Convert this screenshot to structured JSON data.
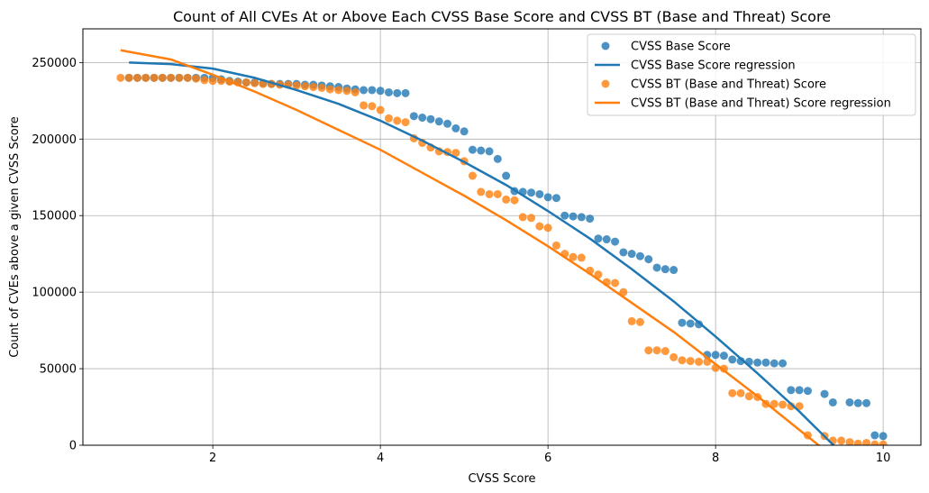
{
  "chart_data": {
    "type": "scatter",
    "title": "Count of All CVEs At or Above Each CVSS Base Score and CVSS BT (Base and Threat) Score",
    "xlabel": "CVSS Score",
    "ylabel": "Count of CVEs above a given CVSS Score",
    "xlim": [
      0.45,
      10.45
    ],
    "ylim": [
      0,
      272000
    ],
    "xticks": [
      2,
      4,
      6,
      8,
      10
    ],
    "yticks": [
      0,
      50000,
      100000,
      150000,
      200000,
      250000
    ],
    "grid": true,
    "legend_position": "top-right",
    "series": [
      {
        "name": "CVSS Base Score",
        "kind": "scatter",
        "color": "#1f77b4",
        "points": [
          [
            1.0,
            240000
          ],
          [
            1.1,
            240000
          ],
          [
            1.2,
            240000
          ],
          [
            1.3,
            240000
          ],
          [
            1.4,
            240000
          ],
          [
            1.5,
            240000
          ],
          [
            1.6,
            240000
          ],
          [
            1.7,
            240000
          ],
          [
            1.8,
            240000
          ],
          [
            1.9,
            240000
          ],
          [
            2.0,
            240000
          ],
          [
            2.1,
            239000
          ],
          [
            2.2,
            238000
          ],
          [
            2.3,
            237500
          ],
          [
            2.4,
            237000
          ],
          [
            2.5,
            237000
          ],
          [
            2.6,
            236500
          ],
          [
            2.7,
            236000
          ],
          [
            2.8,
            236000
          ],
          [
            2.9,
            236000
          ],
          [
            3.0,
            236000
          ],
          [
            3.1,
            235500
          ],
          [
            3.2,
            235500
          ],
          [
            3.3,
            235000
          ],
          [
            3.4,
            234500
          ],
          [
            3.5,
            234000
          ],
          [
            3.6,
            233000
          ],
          [
            3.7,
            232500
          ],
          [
            3.8,
            232000
          ],
          [
            3.9,
            232000
          ],
          [
            4.0,
            231500
          ],
          [
            4.1,
            230500
          ],
          [
            4.2,
            230000
          ],
          [
            4.3,
            230000
          ],
          [
            4.4,
            215000
          ],
          [
            4.5,
            214000
          ],
          [
            4.6,
            213000
          ],
          [
            4.7,
            211500
          ],
          [
            4.8,
            210000
          ],
          [
            4.9,
            207000
          ],
          [
            5.0,
            205000
          ],
          [
            5.1,
            193000
          ],
          [
            5.2,
            192500
          ],
          [
            5.3,
            192000
          ],
          [
            5.4,
            187000
          ],
          [
            5.5,
            176000
          ],
          [
            5.6,
            166000
          ],
          [
            5.7,
            165500
          ],
          [
            5.8,
            165000
          ],
          [
            5.9,
            164000
          ],
          [
            6.0,
            162000
          ],
          [
            6.1,
            161500
          ],
          [
            6.2,
            150000
          ],
          [
            6.3,
            149500
          ],
          [
            6.4,
            149000
          ],
          [
            6.5,
            148000
          ],
          [
            6.6,
            135000
          ],
          [
            6.7,
            134500
          ],
          [
            6.8,
            133000
          ],
          [
            6.9,
            126000
          ],
          [
            7.0,
            125000
          ],
          [
            7.1,
            123500
          ],
          [
            7.2,
            121500
          ],
          [
            7.3,
            116000
          ],
          [
            7.4,
            115000
          ],
          [
            7.5,
            114500
          ],
          [
            7.6,
            80000
          ],
          [
            7.7,
            79500
          ],
          [
            7.8,
            79000
          ],
          [
            7.9,
            59000
          ],
          [
            8.0,
            59000
          ],
          [
            8.1,
            58500
          ],
          [
            8.2,
            56000
          ],
          [
            8.3,
            55000
          ],
          [
            8.4,
            54500
          ],
          [
            8.5,
            54000
          ],
          [
            8.6,
            54000
          ],
          [
            8.7,
            53500
          ],
          [
            8.8,
            53500
          ],
          [
            8.9,
            36000
          ],
          [
            9.0,
            36000
          ],
          [
            9.1,
            35500
          ],
          [
            9.3,
            33500
          ],
          [
            9.4,
            28000
          ],
          [
            9.6,
            28000
          ],
          [
            9.7,
            27500
          ],
          [
            9.8,
            27500
          ],
          [
            9.9,
            6500
          ],
          [
            10.0,
            6000
          ]
        ]
      },
      {
        "name": "CVSS Base Score regression",
        "kind": "line",
        "color": "#1f77b4",
        "x": [
          1.0,
          1.5,
          2.0,
          2.5,
          3.0,
          3.5,
          4.0,
          4.5,
          5.0,
          5.5,
          6.0,
          6.5,
          7.0,
          7.5,
          8.0,
          8.5,
          9.0,
          9.5,
          9.8
        ],
        "values": [
          250000,
          249000,
          246000,
          240000,
          232000,
          223000,
          212000,
          199000,
          185000,
          170000,
          153000,
          135000,
          115000,
          94000,
          71000,
          47000,
          22000,
          -5000,
          -20000
        ]
      },
      {
        "name": "CVSS BT (Base and Threat) Score",
        "kind": "scatter",
        "color": "#ff7f0e",
        "points": [
          [
            0.9,
            240000
          ],
          [
            1.0,
            240000
          ],
          [
            1.1,
            240000
          ],
          [
            1.2,
            240000
          ],
          [
            1.3,
            240000
          ],
          [
            1.4,
            240000
          ],
          [
            1.5,
            240000
          ],
          [
            1.6,
            240000
          ],
          [
            1.7,
            240000
          ],
          [
            1.8,
            239500
          ],
          [
            1.9,
            238500
          ],
          [
            2.0,
            238000
          ],
          [
            2.1,
            238000
          ],
          [
            2.2,
            237500
          ],
          [
            2.3,
            237000
          ],
          [
            2.4,
            237000
          ],
          [
            2.5,
            236500
          ],
          [
            2.6,
            236000
          ],
          [
            2.7,
            236000
          ],
          [
            2.8,
            235500
          ],
          [
            2.9,
            235500
          ],
          [
            3.0,
            235000
          ],
          [
            3.1,
            234500
          ],
          [
            3.2,
            234000
          ],
          [
            3.3,
            233500
          ],
          [
            3.4,
            232500
          ],
          [
            3.5,
            232000
          ],
          [
            3.6,
            231500
          ],
          [
            3.7,
            230500
          ],
          [
            3.8,
            222000
          ],
          [
            3.9,
            221500
          ],
          [
            4.0,
            219000
          ],
          [
            4.1,
            213500
          ],
          [
            4.2,
            212000
          ],
          [
            4.3,
            211000
          ],
          [
            4.4,
            200500
          ],
          [
            4.5,
            197500
          ],
          [
            4.6,
            194500
          ],
          [
            4.7,
            192000
          ],
          [
            4.8,
            191500
          ],
          [
            4.9,
            191000
          ],
          [
            5.0,
            185500
          ],
          [
            5.1,
            176000
          ],
          [
            5.2,
            165500
          ],
          [
            5.3,
            164000
          ],
          [
            5.4,
            164000
          ],
          [
            5.5,
            160500
          ],
          [
            5.6,
            160000
          ],
          [
            5.7,
            149000
          ],
          [
            5.8,
            148500
          ],
          [
            5.9,
            143000
          ],
          [
            6.0,
            142000
          ],
          [
            6.1,
            130500
          ],
          [
            6.2,
            125000
          ],
          [
            6.3,
            123000
          ],
          [
            6.4,
            122500
          ],
          [
            6.5,
            114000
          ],
          [
            6.6,
            111500
          ],
          [
            6.7,
            106500
          ],
          [
            6.8,
            106000
          ],
          [
            6.9,
            100000
          ],
          [
            7.0,
            81000
          ],
          [
            7.1,
            80500
          ],
          [
            7.2,
            62000
          ],
          [
            7.3,
            62000
          ],
          [
            7.4,
            61500
          ],
          [
            7.5,
            57500
          ],
          [
            7.6,
            55500
          ],
          [
            7.7,
            55000
          ],
          [
            7.8,
            54500
          ],
          [
            7.9,
            54500
          ],
          [
            8.0,
            50500
          ],
          [
            8.1,
            50000
          ],
          [
            8.2,
            34000
          ],
          [
            8.3,
            34000
          ],
          [
            8.4,
            32000
          ],
          [
            8.5,
            31500
          ],
          [
            8.6,
            27000
          ],
          [
            8.7,
            27000
          ],
          [
            8.8,
            26500
          ],
          [
            8.9,
            25500
          ],
          [
            9.0,
            25500
          ],
          [
            9.1,
            6500
          ],
          [
            9.3,
            6000
          ],
          [
            9.4,
            3000
          ],
          [
            9.5,
            3000
          ],
          [
            9.6,
            2000
          ],
          [
            9.7,
            1000
          ],
          [
            9.8,
            1500
          ],
          [
            9.9,
            500
          ],
          [
            10.0,
            500
          ]
        ]
      },
      {
        "name": "CVSS BT (Base and Threat) Score regression",
        "kind": "line",
        "color": "#ff7f0e",
        "x": [
          0.9,
          1.5,
          2.0,
          2.5,
          3.0,
          3.5,
          4.0,
          4.5,
          5.0,
          5.5,
          6.0,
          6.5,
          7.0,
          7.5,
          8.0,
          8.5,
          9.0,
          9.3,
          9.5,
          10.0
        ],
        "values": [
          258000,
          252000,
          242000,
          231000,
          219000,
          206000,
          193000,
          178000,
          163000,
          147000,
          130000,
          112000,
          93000,
          74000,
          53000,
          32000,
          10000,
          -3000,
          -12000,
          -35000
        ]
      }
    ]
  }
}
